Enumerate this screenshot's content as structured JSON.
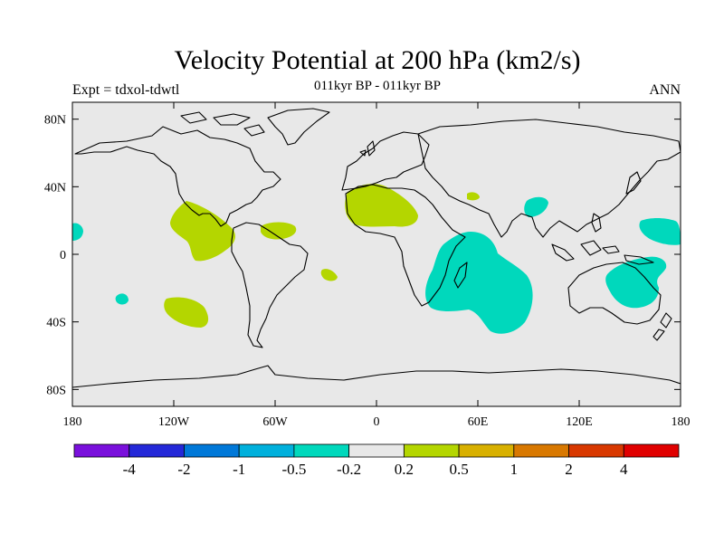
{
  "header": {
    "title": "Velocity Potential at 200 hPa (km2/s)",
    "left_label": "Expt = tdxol-tdwtl",
    "center_label": "011kyr BP - 011kyr BP",
    "right_label": "ANN"
  },
  "map": {
    "projection": "cylindrical equidistant",
    "lon_range": [
      -180,
      180
    ],
    "lat_range": [
      -90,
      90
    ],
    "background_color": "#e8e8e8",
    "coastline_color": "#000000",
    "x_ticks": [
      {
        "lon": -180,
        "label": "180"
      },
      {
        "lon": -120,
        "label": "120W"
      },
      {
        "lon": -60,
        "label": "60W"
      },
      {
        "lon": 0,
        "label": "0"
      },
      {
        "lon": 60,
        "label": "60E"
      },
      {
        "lon": 120,
        "label": "120E"
      },
      {
        "lon": 180,
        "label": "180"
      }
    ],
    "y_ticks": [
      {
        "lat": 80,
        "label": "80N"
      },
      {
        "lat": 40,
        "label": "40N"
      },
      {
        "lat": 0,
        "label": "0"
      },
      {
        "lat": -40,
        "label": "40S"
      },
      {
        "lat": -80,
        "label": "80S"
      }
    ]
  },
  "contour_regions": [
    {
      "name": "eastern-pacific-central-america-positive",
      "level": "0.2 to 0.5",
      "color": "#b4d600"
    },
    {
      "name": "caribbean-positive",
      "level": "0.2 to 0.5",
      "color": "#b4d600"
    },
    {
      "name": "south-atlantic-small-positive",
      "level": "0.2 to 0.5",
      "color": "#b4d600"
    },
    {
      "name": "south-pacific-positive",
      "level": "0.2 to 0.5",
      "color": "#b4d600"
    },
    {
      "name": "north-africa-positive",
      "level": "0.2 to 0.5",
      "color": "#b4d600"
    },
    {
      "name": "arabia-small-positive",
      "level": "0.2 to 0.5",
      "color": "#b4d600"
    },
    {
      "name": "central-pacific-negative",
      "level": "-0.5 to -0.2",
      "color": "#00d8bc"
    },
    {
      "name": "south-pacific-small-negative",
      "level": "-0.5 to -0.2",
      "color": "#00d8bc"
    },
    {
      "name": "southern-africa-indian-ocean-negative",
      "level": "-0.5 to -0.2",
      "color": "#00d8bc"
    },
    {
      "name": "bay-of-bengal-negative",
      "level": "-0.5 to -0.2",
      "color": "#00d8bc"
    },
    {
      "name": "western-pacific-negative",
      "level": "-0.5 to -0.2",
      "color": "#00d8bc"
    },
    {
      "name": "australia-negative",
      "level": "-0.5 to -0.2",
      "color": "#00d8bc"
    }
  ],
  "colorbar": {
    "colors": [
      "#7a10dc",
      "#2428d8",
      "#0078d8",
      "#00b0dc",
      "#00d8bc",
      "#e8e8e8",
      "#b4d600",
      "#d8b000",
      "#d87800",
      "#d83800",
      "#e00000"
    ],
    "labels": [
      "-4",
      "-2",
      "-1",
      "-0.5",
      "-0.2",
      "0.2",
      "0.5",
      "1",
      "2",
      "4"
    ]
  }
}
